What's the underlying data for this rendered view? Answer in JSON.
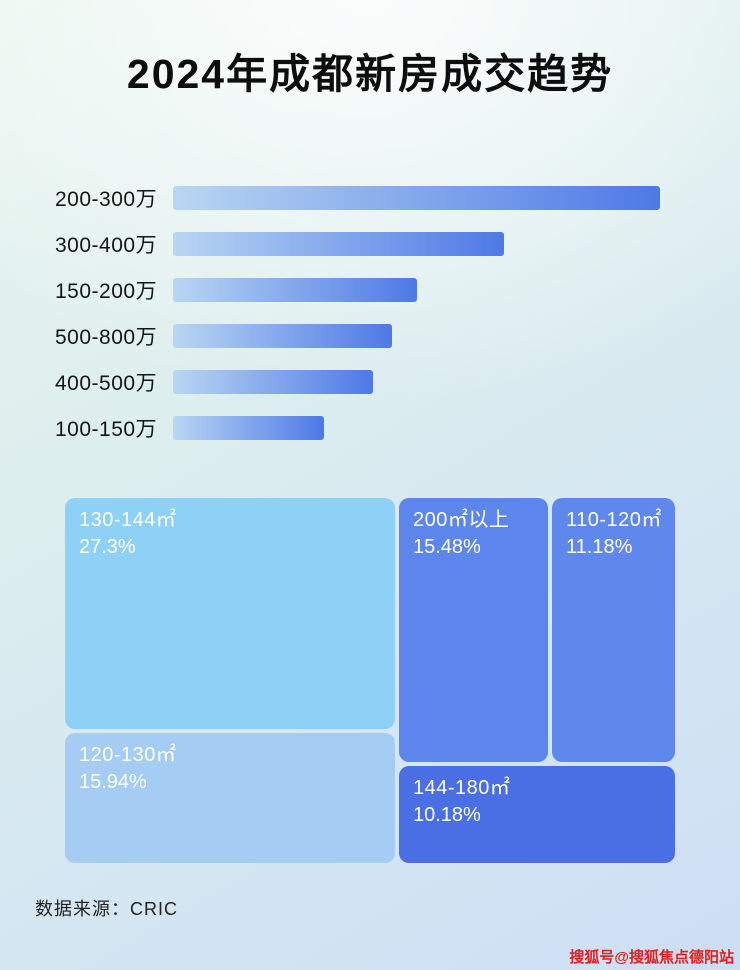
{
  "page": {
    "title": "2024年成都新房成交趋势",
    "source": "数据来源：CRIC",
    "watermark": "搜狐号@搜狐焦点德阳站"
  },
  "chart_data": [
    {
      "type": "bar",
      "orientation": "horizontal",
      "categories": [
        "200-300万",
        "300-400万",
        "150-200万",
        "500-800万",
        "400-500万",
        "100-150万"
      ],
      "values": [
        100,
        68,
        50,
        45,
        41,
        31
      ],
      "values_note": "relative bar lengths, max = 100 (no numeric axis shown in image)",
      "bar_gradient": [
        "#b9d6f2",
        "#4e79e6"
      ],
      "legend": "none",
      "grid": false
    },
    {
      "type": "treemap",
      "items": [
        {
          "label": "130-144㎡",
          "value": 27.3,
          "display": "27.3%",
          "color": "#8fd0f7"
        },
        {
          "label": "200㎡以上",
          "value": 15.48,
          "display": "15.48%",
          "color": "#5d86ec"
        },
        {
          "label": "110-120㎡",
          "value": 11.18,
          "display": "11.18%",
          "color": "#5f88ed"
        },
        {
          "label": "120-130㎡",
          "value": 15.94,
          "display": "15.94%",
          "color": "#a5ccf3"
        },
        {
          "label": "144-180㎡",
          "value": 10.18,
          "display": "10.18%",
          "color": "#4a6fe4"
        }
      ]
    }
  ]
}
